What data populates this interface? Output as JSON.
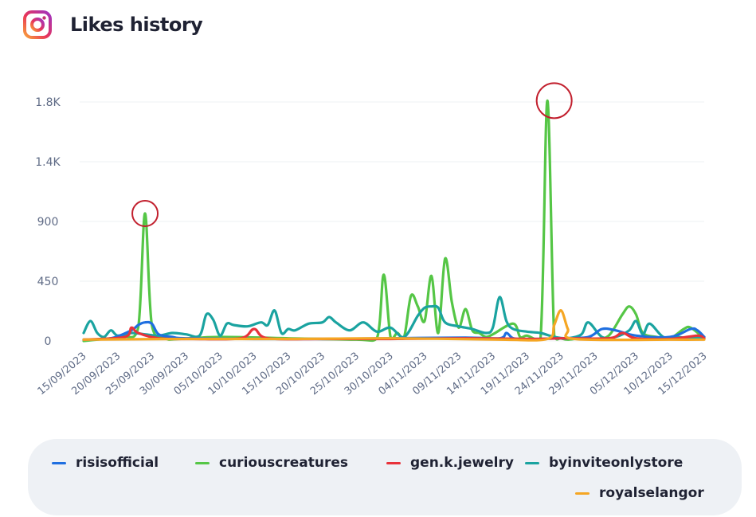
{
  "header": {
    "title": "Likes history",
    "icon": "instagram-icon"
  },
  "colors": {
    "risisofficial": "#1f6fe0",
    "curiouscreatures": "#55c646",
    "gen_k_jewelry": "#e8323a",
    "byinviteonlystore": "#1aa3a0",
    "royalselangor": "#f5a623",
    "highlight_circle": "#c2202e",
    "gridline": "#eef0f3"
  },
  "chart_data": {
    "type": "line",
    "title": "Likes history",
    "xlabel": "",
    "ylabel": "",
    "y_ticks": [
      "0",
      "450",
      "900",
      "1.4K",
      "1.8K"
    ],
    "y_tick_values": [
      0,
      450,
      900,
      1350,
      1800
    ],
    "ylim": [
      0,
      1800
    ],
    "x_ticks": [
      "15/09/2023",
      "20/09/2023",
      "25/09/2023",
      "30/09/2023",
      "05/10/2023",
      "10/10/2023",
      "15/10/2023",
      "20/10/2023",
      "25/10/2023",
      "30/10/2023",
      "04/11/2023",
      "09/11/2023",
      "14/11/2023",
      "19/11/2023",
      "24/11/2023",
      "29/11/2023",
      "05/12/2023",
      "10/12/2023",
      "15/12/2023"
    ],
    "x_range": [
      "15/09/2023",
      "15/12/2023"
    ],
    "grid": true,
    "legend_position": "bottom",
    "series": [
      {
        "name": "curiouscreatures",
        "x": [
          "15/09/2023",
          "17/09/2023",
          "19/09/2023",
          "21/09/2023",
          "23/09/2023",
          "24/09/2023",
          "25/09/2023",
          "27/09/2023",
          "29/09/2023",
          "05/10/2023",
          "15/10/2023",
          "25/10/2023",
          "28/10/2023",
          "29/10/2023",
          "30/10/2023",
          "31/10/2023",
          "01/11/2023",
          "02/11/2023",
          "03/11/2023",
          "04/11/2023",
          "05/11/2023",
          "06/11/2023",
          "07/11/2023",
          "08/11/2023",
          "09/11/2023",
          "10/11/2023",
          "11/11/2023",
          "12/11/2023",
          "13/11/2023",
          "14/11/2023",
          "17/11/2023",
          "18/11/2023",
          "19/11/2023",
          "21/11/2023",
          "22/11/2023",
          "23/11/2023",
          "24/11/2023",
          "25/11/2023",
          "27/11/2023",
          "29/11/2023",
          "01/12/2023",
          "03/12/2023",
          "04/12/2023",
          "05/12/2023",
          "06/12/2023",
          "08/12/2023",
          "10/12/2023",
          "12/12/2023",
          "13/12/2023",
          "15/12/2023"
        ],
        "y": [
          0,
          10,
          20,
          30,
          100,
          960,
          120,
          20,
          15,
          30,
          20,
          10,
          20,
          500,
          30,
          60,
          30,
          340,
          260,
          150,
          490,
          60,
          620,
          290,
          100,
          240,
          80,
          60,
          30,
          50,
          130,
          30,
          40,
          20,
          1810,
          40,
          20,
          10,
          20,
          15,
          40,
          200,
          260,
          200,
          60,
          30,
          20,
          90,
          100,
          20
        ]
      },
      {
        "name": "byinviteonlystore",
        "x": [
          "15/09/2023",
          "16/09/2023",
          "17/09/2023",
          "18/09/2023",
          "19/09/2023",
          "20/09/2023",
          "22/09/2023",
          "24/09/2023",
          "26/09/2023",
          "28/09/2023",
          "30/09/2023",
          "02/10/2023",
          "03/10/2023",
          "04/10/2023",
          "05/10/2023",
          "06/10/2023",
          "07/10/2023",
          "09/10/2023",
          "11/10/2023",
          "12/10/2023",
          "13/10/2023",
          "14/10/2023",
          "15/10/2023",
          "16/10/2023",
          "18/10/2023",
          "20/10/2023",
          "21/10/2023",
          "22/10/2023",
          "24/10/2023",
          "26/10/2023",
          "28/10/2023",
          "30/10/2023",
          "01/11/2023",
          "03/11/2023",
          "04/11/2023",
          "05/11/2023",
          "06/11/2023",
          "07/11/2023",
          "09/11/2023",
          "11/11/2023",
          "13/11/2023",
          "14/11/2023",
          "15/11/2023",
          "16/11/2023",
          "17/11/2023",
          "19/11/2023",
          "21/11/2023",
          "23/11/2023",
          "25/11/2023",
          "27/11/2023",
          "28/11/2023",
          "30/11/2023",
          "02/12/2023",
          "04/12/2023",
          "05/12/2023",
          "06/12/2023",
          "07/12/2023",
          "09/12/2023",
          "11/12/2023",
          "13/12/2023",
          "15/12/2023"
        ],
        "y": [
          60,
          150,
          60,
          30,
          80,
          40,
          60,
          50,
          40,
          60,
          50,
          40,
          200,
          160,
          40,
          130,
          120,
          110,
          140,
          120,
          230,
          60,
          90,
          80,
          130,
          140,
          180,
          140,
          80,
          140,
          70,
          100,
          30,
          190,
          250,
          260,
          250,
          140,
          110,
          90,
          60,
          100,
          330,
          150,
          90,
          70,
          60,
          30,
          20,
          50,
          140,
          30,
          30,
          80,
          150,
          50,
          130,
          30,
          30,
          20,
          30
        ]
      },
      {
        "name": "risisofficial",
        "x": [
          "15/09/2023",
          "19/09/2023",
          "22/09/2023",
          "23/09/2023",
          "24/09/2023",
          "25/09/2023",
          "26/09/2023",
          "28/09/2023",
          "30/09/2023",
          "10/10/2023",
          "20/10/2023",
          "30/10/2023",
          "10/11/2023",
          "15/11/2023",
          "16/11/2023",
          "17/11/2023",
          "19/11/2023",
          "24/11/2023",
          "28/11/2023",
          "30/11/2023",
          "02/12/2023",
          "05/12/2023",
          "10/12/2023",
          "13/12/2023",
          "14/12/2023",
          "15/12/2023"
        ],
        "y": [
          10,
          20,
          80,
          120,
          140,
          130,
          50,
          30,
          20,
          15,
          15,
          20,
          25,
          20,
          60,
          20,
          15,
          20,
          30,
          90,
          80,
          40,
          30,
          90,
          80,
          30
        ]
      },
      {
        "name": "gen.k.jewelry",
        "x": [
          "15/09/2023",
          "21/09/2023",
          "22/09/2023",
          "23/09/2023",
          "26/09/2023",
          "01/10/2023",
          "08/10/2023",
          "10/10/2023",
          "12/10/2023",
          "20/10/2023",
          "30/10/2023",
          "10/11/2023",
          "20/11/2023",
          "24/11/2023",
          "01/12/2023",
          "03/12/2023",
          "05/12/2023",
          "10/12/2023",
          "14/12/2023",
          "15/12/2023"
        ],
        "y": [
          10,
          30,
          100,
          60,
          20,
          15,
          20,
          90,
          20,
          15,
          15,
          20,
          15,
          20,
          20,
          60,
          20,
          15,
          40,
          20
        ]
      },
      {
        "name": "royalselangor",
        "x": [
          "15/09/2023",
          "30/09/2023",
          "15/10/2023",
          "30/10/2023",
          "15/11/2023",
          "22/11/2023",
          "23/11/2023",
          "24/11/2023",
          "25/11/2023",
          "26/11/2023",
          "10/12/2023",
          "15/12/2023"
        ],
        "y": [
          10,
          15,
          15,
          20,
          10,
          15,
          120,
          230,
          90,
          15,
          10,
          10
        ]
      }
    ],
    "highlights": [
      {
        "series": "curiouscreatures",
        "x": "24/09/2023",
        "y": 960
      },
      {
        "series": "curiouscreatures",
        "x": "23/11/2023",
        "y": 1810
      }
    ]
  },
  "legend": {
    "items": [
      {
        "label": "risisofficial",
        "color": "#1f6fe0"
      },
      {
        "label": "curiouscreatures",
        "color": "#55c646"
      },
      {
        "label": "gen.k.jewelry",
        "color": "#e8323a"
      },
      {
        "label": "byinviteonlystore",
        "color": "#1aa3a0"
      },
      {
        "label": "royalselangor",
        "color": "#f5a623"
      }
    ]
  }
}
